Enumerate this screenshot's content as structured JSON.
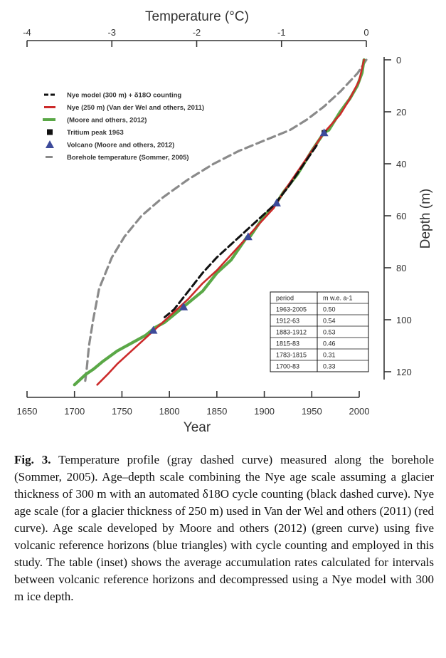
{
  "chart_data": {
    "type": "line",
    "top_axis": {
      "label": "Temperature (°C)",
      "range": [
        -4,
        0
      ],
      "ticks": [
        "-4",
        "-3",
        "-2",
        "-1",
        "0"
      ]
    },
    "bottom_axis": {
      "label": "Year",
      "range": [
        1650,
        2000
      ],
      "ticks": [
        "1650",
        "1700",
        "1750",
        "1800",
        "1850",
        "1900",
        "1950",
        "2000"
      ]
    },
    "right_axis": {
      "label": "Depth (m)",
      "range": [
        0,
        130
      ],
      "inverted": true,
      "ticks": [
        "0",
        "20",
        "40",
        "60",
        "80",
        "100",
        "120"
      ]
    },
    "legend": [
      {
        "key": "nye300",
        "symbol": "dash-black",
        "label": "Nye model (300 m) + δ18O counting"
      },
      {
        "key": "nye250",
        "symbol": "line-red",
        "label": "Nye (250 m) (Van der Wel and others, 2011)"
      },
      {
        "key": "moore",
        "symbol": "line-green",
        "label": "(Moore and others, 2012)"
      },
      {
        "key": "tritium",
        "symbol": "square-black",
        "label": "Tritium peak 1963"
      },
      {
        "key": "volcano",
        "symbol": "triangle-blue",
        "label": "Volcano (Moore and others, 2012)"
      },
      {
        "key": "borehole",
        "symbol": "dash-gray",
        "label": "Borehole temperature (Sommer, 2005)"
      }
    ],
    "series": [
      {
        "key": "moore",
        "name": "(Moore and others, 2012)",
        "axis": "year",
        "points": [
          [
            2005,
            0
          ],
          [
            2003,
            5
          ],
          [
            1998,
            10
          ],
          [
            1990,
            15
          ],
          [
            1980,
            20
          ],
          [
            1968,
            27
          ],
          [
            1963,
            28
          ],
          [
            1950,
            35
          ],
          [
            1935,
            44
          ],
          [
            1920,
            51
          ],
          [
            1913,
            55
          ],
          [
            1900,
            60
          ],
          [
            1885,
            68
          ],
          [
            1882,
            68
          ],
          [
            1865,
            77
          ],
          [
            1850,
            82
          ],
          [
            1835,
            89
          ],
          [
            1825,
            92
          ],
          [
            1815,
            95
          ],
          [
            1805,
            98
          ],
          [
            1795,
            101
          ],
          [
            1785,
            103
          ],
          [
            1775,
            106
          ],
          [
            1760,
            109
          ],
          [
            1745,
            112
          ],
          [
            1730,
            116
          ],
          [
            1720,
            119
          ],
          [
            1712,
            121
          ],
          [
            1700,
            125
          ]
        ]
      },
      {
        "key": "nye250",
        "name": "Nye (250 m) (Van der Wel and others, 2011)",
        "axis": "year",
        "points": [
          [
            2005,
            0
          ],
          [
            2000,
            8
          ],
          [
            1990,
            15
          ],
          [
            1980,
            21
          ],
          [
            1963,
            28
          ],
          [
            1950,
            35
          ],
          [
            1935,
            43
          ],
          [
            1920,
            51
          ],
          [
            1910,
            57
          ],
          [
            1895,
            63
          ],
          [
            1880,
            69
          ],
          [
            1865,
            75
          ],
          [
            1850,
            81
          ],
          [
            1835,
            86
          ],
          [
            1820,
            92
          ],
          [
            1805,
            97
          ],
          [
            1790,
            102
          ],
          [
            1775,
            107
          ],
          [
            1760,
            112
          ],
          [
            1745,
            117
          ],
          [
            1735,
            121
          ],
          [
            1724,
            125
          ]
        ]
      },
      {
        "key": "nye300",
        "name": "Nye model (300 m) + δ18O counting",
        "axis": "year",
        "points": [
          [
            1955,
            33
          ],
          [
            1940,
            41
          ],
          [
            1925,
            49
          ],
          [
            1910,
            56
          ],
          [
            1895,
            61
          ],
          [
            1880,
            66
          ],
          [
            1865,
            71
          ],
          [
            1850,
            76
          ],
          [
            1835,
            82
          ],
          [
            1820,
            89
          ],
          [
            1805,
            96
          ],
          [
            1795,
            99
          ]
        ]
      },
      {
        "key": "borehole",
        "name": "Borehole temperature (Sommer, 2005)",
        "axis": "temperature",
        "points": [
          [
            0,
            0
          ],
          [
            -0.1,
            5
          ],
          [
            -0.3,
            12
          ],
          [
            -0.5,
            18
          ],
          [
            -0.7,
            23
          ],
          [
            -0.9,
            27
          ],
          [
            -1.2,
            31
          ],
          [
            -1.5,
            35
          ],
          [
            -1.8,
            40
          ],
          [
            -2.1,
            46
          ],
          [
            -2.4,
            53
          ],
          [
            -2.65,
            60
          ],
          [
            -2.85,
            68
          ],
          [
            -3.0,
            76
          ],
          [
            -3.15,
            88
          ],
          [
            -3.22,
            100
          ],
          [
            -3.27,
            110
          ],
          [
            -3.3,
            120
          ],
          [
            -3.32,
            125
          ]
        ]
      }
    ],
    "markers": {
      "tritium": [
        [
          1963,
          28
        ]
      ],
      "volcano": [
        [
          1963,
          28
        ],
        [
          1913,
          55
        ],
        [
          1883,
          68
        ],
        [
          1815,
          95
        ],
        [
          1783,
          104
        ]
      ]
    },
    "inset_table": {
      "headers": [
        "period",
        "m w.e. a-1"
      ],
      "rows": [
        [
          "1963-2005",
          "0.50"
        ],
        [
          "1912-63",
          "0.54"
        ],
        [
          "1883-1912",
          "0.53"
        ],
        [
          "1815-83",
          "0.46"
        ],
        [
          "1783-1815",
          "0.31"
        ],
        [
          "1700-83",
          "0.33"
        ]
      ]
    }
  },
  "caption": {
    "label": "Fig. 3.",
    "text": "Temperature profile (gray dashed curve) measured along the borehole (Sommer, 2005). Age–depth scale combining the Nye age scale assuming a glacier thickness of 300 m with an automated δ18O cycle counting (black dashed curve). Nye age scale (for a glacier thickness of 250 m) used in Van der Wel and others (2011) (red curve). Age scale developed by Moore and others (2012) (green curve) using five volcanic reference horizons (blue triangles) with cycle counting and employed in this study. The table (inset) shows the average accumulation rates calculated for intervals between volcanic reference horizons and decompressed using a Nye model with 300 m ice depth."
  },
  "colors": {
    "moore": "#5aa847",
    "nye250": "#cc2a2a",
    "nye300": "#111111",
    "borehole": "#8a8a8a",
    "volcano": "#3c4a9a",
    "axis": "#333333"
  }
}
